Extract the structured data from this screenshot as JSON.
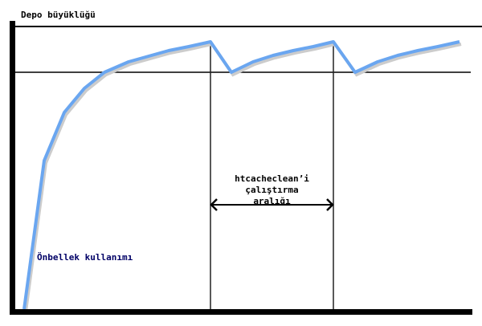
{
  "diagram": {
    "y_axis_label": "Depo büyüklüğü",
    "interval_label_lines": [
      "htcacheclean’i",
      "çalıştırma",
      "aralığı"
    ],
    "curve_label": "Önbellek kullanımı",
    "colors": {
      "curve": "#6aa6f0",
      "curve_label": "#000066",
      "axes": "#000000"
    }
  }
}
